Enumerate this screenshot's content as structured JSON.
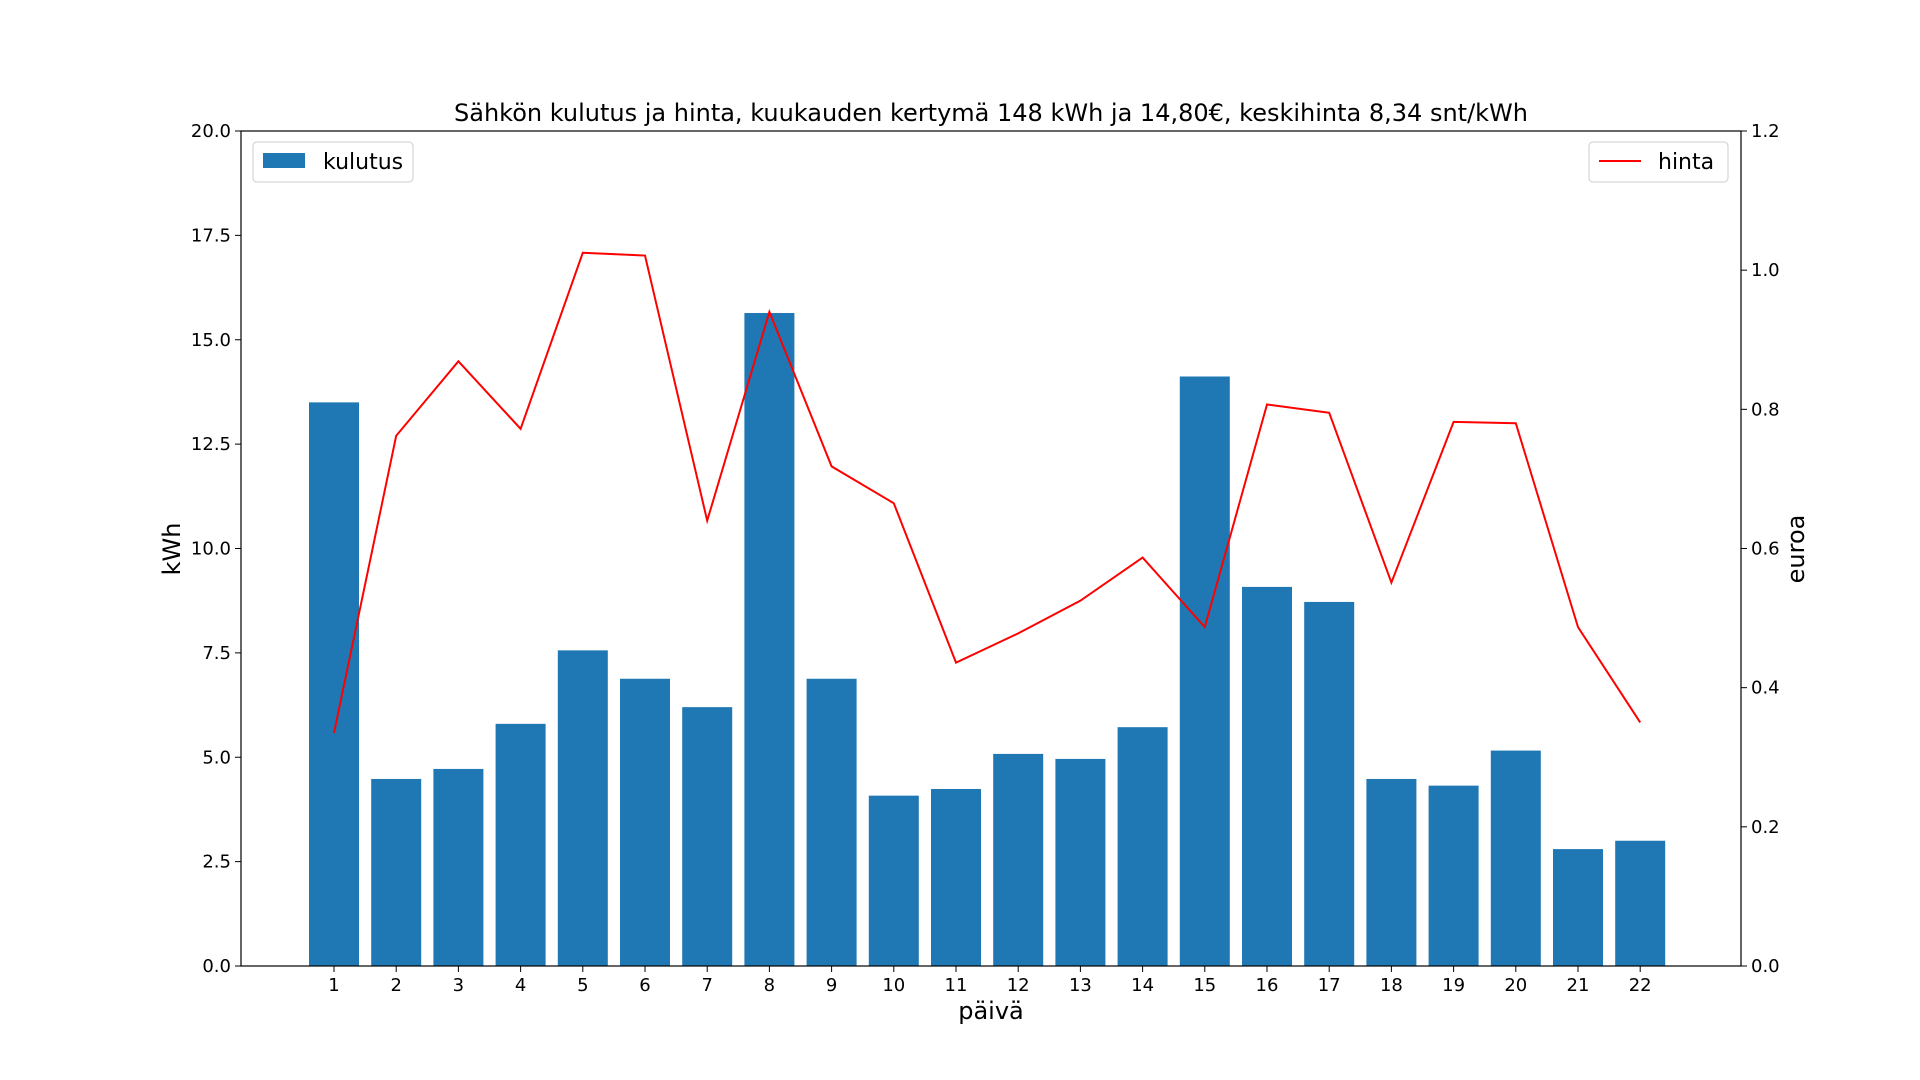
{
  "chart_data": {
    "type": "bar",
    "title": "Sähkön kulutus ja hinta, kuukauden kertymä 148 kWh ja 14,80€, keskihinta 8,34 snt/kWh",
    "xlabel": "päivä",
    "ylabel": "kWh",
    "y2label": "euroa",
    "categories": [
      "1",
      "2",
      "3",
      "4",
      "5",
      "6",
      "7",
      "8",
      "9",
      "10",
      "11",
      "12",
      "13",
      "14",
      "15",
      "16",
      "17",
      "18",
      "19",
      "20",
      "21",
      "22"
    ],
    "ylim": [
      0,
      20
    ],
    "y2lim": [
      0,
      1.2
    ],
    "yticks": [
      "0.0",
      "2.5",
      "5.0",
      "7.5",
      "10.0",
      "12.5",
      "15.0",
      "17.5",
      "20.0"
    ],
    "y2ticks": [
      "0.0",
      "0.2",
      "0.4",
      "0.6",
      "0.8",
      "1.0",
      "1.2"
    ],
    "grid": false,
    "series": [
      {
        "name": "kulutus",
        "type": "bar",
        "axis": "left",
        "color": "#1f77b4",
        "legend": "top-left",
        "values": [
          13.5,
          4.48,
          4.72,
          5.8,
          7.56,
          6.88,
          6.2,
          15.64,
          6.88,
          4.08,
          4.24,
          5.08,
          4.96,
          5.72,
          14.12,
          9.08,
          8.72,
          4.48,
          4.32,
          5.16,
          2.8,
          3.0
        ]
      },
      {
        "name": "hinta",
        "type": "line",
        "axis": "right",
        "color": "#ff0000",
        "legend": "top-right",
        "values": [
          0.335,
          0.762,
          0.869,
          0.772,
          1.025,
          1.021,
          0.64,
          0.94,
          0.718,
          0.665,
          0.436,
          0.478,
          0.525,
          0.587,
          0.487,
          0.807,
          0.795,
          0.551,
          0.782,
          0.78,
          0.487,
          0.35
        ]
      }
    ]
  }
}
